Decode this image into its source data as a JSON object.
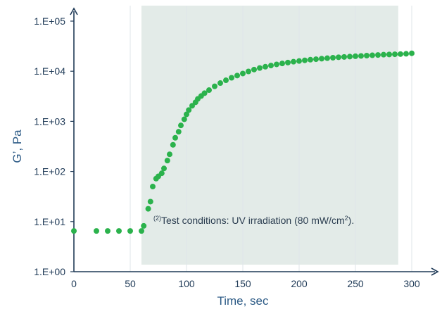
{
  "chart_data": {
    "type": "scatter",
    "xlabel": "Time, sec",
    "ylabel": "G’, Pa",
    "xlim": [
      0,
      300
    ],
    "ylim": [
      1,
      100000
    ],
    "yscale": "log",
    "xticks": [
      0,
      50,
      100,
      150,
      200,
      250,
      300
    ],
    "xtick_labels": [
      "0",
      "50",
      "100",
      "150",
      "200",
      "250",
      "300"
    ],
    "yticks": [
      1,
      10,
      100,
      1000,
      10000,
      100000
    ],
    "ytick_labels": [
      "1.E+00",
      "1.E+01",
      "1.E+02",
      "1.E+03",
      "1.E+04",
      "1.E+05"
    ],
    "grid": "vertical",
    "shaded_region": {
      "x_start": 60,
      "x_end": 288
    },
    "annotation": {
      "superscript": "(2)",
      "text": "Test conditions: UV irradiation (80 mW/cm",
      "text_sup": "2",
      "text_end": ")."
    },
    "colors": {
      "marker": "#2bb24c",
      "shade": "#e3ebe8",
      "axis": "#1f3a57",
      "grid": "#dfe4ea"
    },
    "series": [
      {
        "x": [
          0,
          20,
          30,
          40,
          50,
          60,
          62,
          66,
          68,
          70,
          73,
          75,
          78,
          80,
          83,
          85,
          88,
          90,
          93,
          95,
          98,
          100,
          102,
          105,
          108,
          110,
          113,
          116,
          120,
          125,
          130,
          135,
          140,
          145,
          150,
          155,
          160,
          165,
          170,
          175,
          180,
          185,
          190,
          195,
          200,
          205,
          210,
          215,
          220,
          225,
          230,
          235,
          240,
          245,
          250,
          255,
          260,
          265,
          270,
          275,
          280,
          285,
          290,
          295,
          300
        ],
        "y": [
          6.5,
          6.5,
          6.5,
          6.5,
          6.5,
          6.5,
          8.2,
          18,
          25,
          50,
          72,
          80,
          92,
          115,
          165,
          220,
          340,
          470,
          620,
          830,
          1100,
          1380,
          1680,
          2050,
          2400,
          2800,
          3200,
          3650,
          4200,
          5000,
          5800,
          6600,
          7400,
          8200,
          9000,
          9900,
          10800,
          11600,
          12300,
          13000,
          13700,
          14300,
          14900,
          15500,
          16000,
          16500,
          17000,
          17400,
          17800,
          18200,
          18600,
          19000,
          19300,
          19600,
          19900,
          20200,
          20500,
          20800,
          21100,
          21400,
          21600,
          21800,
          22000,
          22300,
          22800
        ]
      }
    ]
  }
}
